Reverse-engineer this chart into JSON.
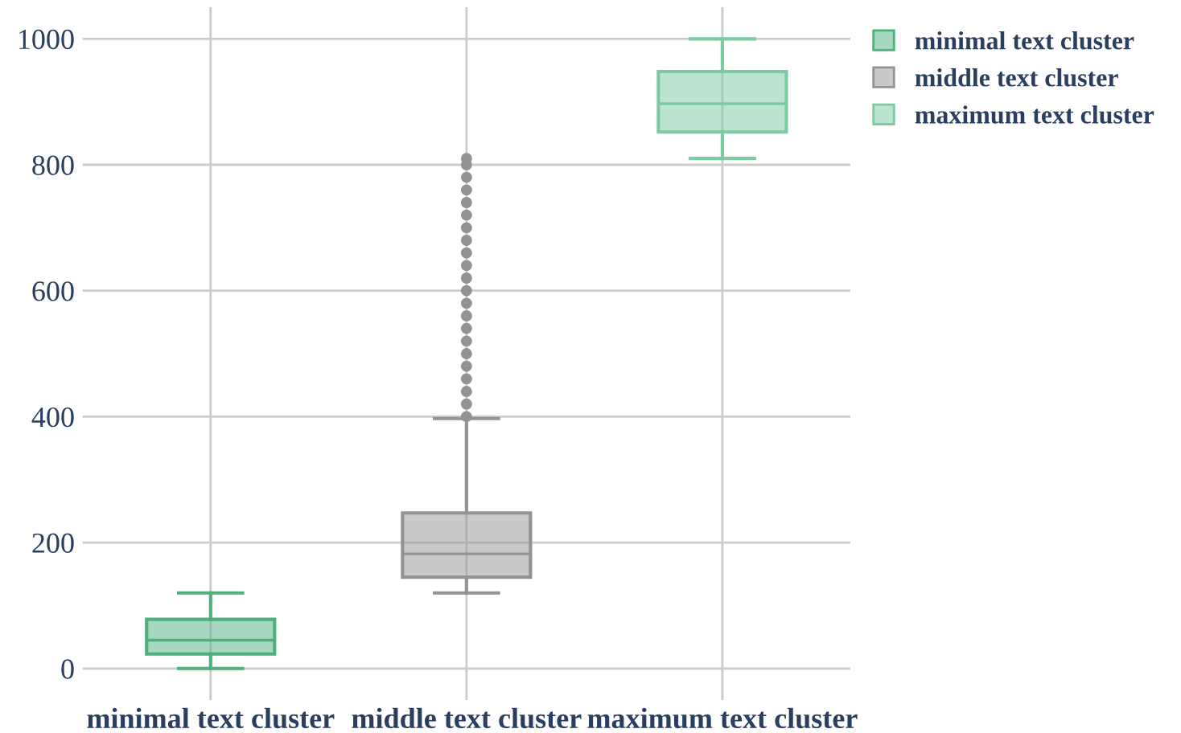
{
  "chart_data": {
    "type": "box",
    "categories": [
      "minimal text cluster",
      "middle text cluster",
      "maximum text cluster"
    ],
    "series": [
      {
        "name": "minimal text cluster",
        "color": "#4fb07e",
        "boxes": [
          {
            "low": 0,
            "q1": 23,
            "median": 45,
            "q3": 78,
            "high": 120
          },
          null,
          null
        ]
      },
      {
        "name": "middle text cluster",
        "color": "#939393",
        "boxes": [
          null,
          {
            "low": 120,
            "q1": 145,
            "median": 182,
            "q3": 247,
            "high": 397,
            "outliers": [
              400,
              420,
              440,
              460,
              480,
              500,
              520,
              540,
              560,
              580,
              600,
              620,
              640,
              660,
              680,
              700,
              720,
              740,
              760,
              780,
              800,
              810
            ]
          },
          null
        ]
      },
      {
        "name": "maximum text cluster",
        "color": "#7ccaa2",
        "boxes": [
          null,
          null,
          {
            "low": 810,
            "q1": 852,
            "median": 897,
            "q3": 948,
            "high": 1000
          }
        ]
      }
    ],
    "ylim": [
      -50,
      1050
    ],
    "yticks": [
      0,
      200,
      400,
      600,
      800,
      1000
    ],
    "grid": true,
    "legend": "top right"
  }
}
